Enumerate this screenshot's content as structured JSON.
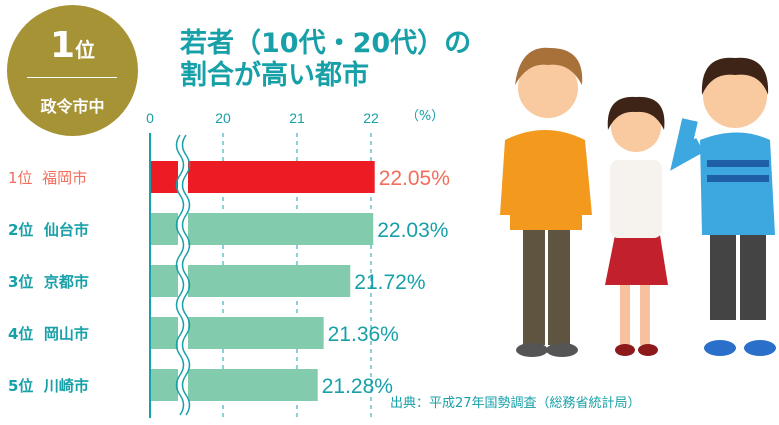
{
  "badge": {
    "rank": "1",
    "rank_suffix": "位",
    "category": "政令市中"
  },
  "title_line1": "若者（10代・20代）の",
  "title_line2": "割合が高い都市",
  "source": "出典：平成27年国勢調査（総務省統計局）",
  "chart_data": {
    "type": "bar",
    "orientation": "horizontal",
    "title": "若者（10代・20代）の割合が高い都市",
    "unit_label": "（%）",
    "xticks": [
      "0",
      "20",
      "21",
      "22"
    ],
    "axis_break": "between 0 and 20",
    "grid": "dashed vertical",
    "categories": [
      "1位  福岡市",
      "2位  仙台市",
      "3位  京都市",
      "4位  岡山市",
      "5位  川崎市"
    ],
    "values": [
      22.05,
      22.03,
      21.72,
      21.36,
      21.28
    ],
    "labels": [
      "22.05%",
      "22.03%",
      "21.72%",
      "21.36%",
      "21.28%"
    ],
    "colors": {
      "highlight": "#ed1c24",
      "bar": "#82cbac",
      "axis": "#17a0a8",
      "highlight_text": "#f26d5b",
      "text": "#17a0a8"
    }
  }
}
